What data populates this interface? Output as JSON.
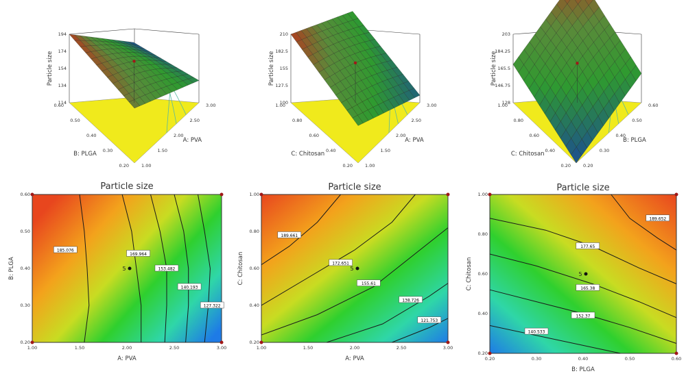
{
  "chart_data": [
    {
      "type": "surface",
      "z_label": "Particle size",
      "x_label": "A: PVA",
      "y_label": "B: PLGA",
      "z_ticks": [
        "194",
        "174",
        "154",
        "134",
        "114"
      ],
      "x_ticks": [
        "1.00",
        "1.50",
        "2.00",
        "2.50",
        "3.00"
      ],
      "y_ticks": [
        "0.20",
        "0.30",
        "0.40",
        "0.50",
        "0.60"
      ],
      "x_range": [
        1.0,
        3.0
      ],
      "y_range": [
        0.2,
        0.6
      ],
      "z_range": [
        114,
        194
      ],
      "corner_values": {
        "x0y0": 178,
        "x1y0": 140,
        "x0y1": 194,
        "x1y1": 114
      },
      "colors": {
        "high": "#b23b1e",
        "mid": "#2f9a30",
        "low": "#1c4f8f",
        "floor": "#f0ea1c"
      }
    },
    {
      "type": "surface",
      "z_label": "Particle size",
      "x_label": "A: PVA",
      "y_label": "C: Chitosan",
      "z_ticks": [
        "210",
        "182.5",
        "155",
        "127.5",
        "100"
      ],
      "x_ticks": [
        "1.00",
        "1.50",
        "2.00",
        "2.50",
        "3.00"
      ],
      "y_ticks": [
        "0.20",
        "0.40",
        "0.60",
        "0.80",
        "1.00"
      ],
      "x_range": [
        1.0,
        3.0
      ],
      "y_range": [
        0.2,
        1.0
      ],
      "z_range": [
        100,
        210
      ],
      "corner_values": {
        "x0y0": 160,
        "x1y0": 112,
        "x0y1": 210,
        "x1y1": 150
      },
      "colors": {
        "high": "#b23b1e",
        "mid": "#2f9a30",
        "low": "#1c4f8f",
        "floor": "#f0ea1c"
      }
    },
    {
      "type": "surface",
      "z_label": "Particle size",
      "x_label": "B: PLGA",
      "y_label": "C: Chitosan",
      "z_ticks": [
        "203",
        "184.25",
        "165.5",
        "146.75",
        "128"
      ],
      "x_ticks": [
        "0.20",
        "0.30",
        "0.40",
        "0.50",
        "0.60"
      ],
      "y_ticks": [
        "0.20",
        "0.40",
        "0.60",
        "0.80",
        "1.00"
      ],
      "x_range": [
        0.2,
        0.6
      ],
      "y_range": [
        0.2,
        1.0
      ],
      "z_range": [
        128,
        203
      ],
      "corner_values": {
        "x0y0": 128,
        "x1y0": 160,
        "x0y1": 170,
        "x1y1": 203
      },
      "colors": {
        "high": "#b23b1e",
        "mid": "#2f9a30",
        "low": "#1c4f8f",
        "floor": "#f0ea1c"
      }
    },
    {
      "type": "contour",
      "title": "Particle size",
      "x_label": "A: PVA",
      "y_label": "B: PLGA",
      "x_ticks": [
        "1.00",
        "1.50",
        "2.00",
        "2.50",
        "3.00"
      ],
      "y_ticks": [
        "0.20",
        "0.30",
        "0.40",
        "0.50",
        "0.60"
      ],
      "x_range": [
        1.0,
        3.0
      ],
      "y_range": [
        0.2,
        0.6
      ],
      "design_point_label": "5",
      "design_point": [
        2.0,
        0.4
      ],
      "contours": [
        {
          "label": "185.076",
          "points": [
            [
              1.55,
              0.2
            ],
            [
              1.6,
              0.3
            ],
            [
              1.58,
              0.4
            ],
            [
              1.55,
              0.5
            ],
            [
              1.5,
              0.6
            ]
          ],
          "label_at": [
            1.35,
            0.45
          ]
        },
        {
          "label": "169.964",
          "points": [
            [
              2.15,
              0.2
            ],
            [
              2.15,
              0.3
            ],
            [
              2.1,
              0.4
            ],
            [
              2.05,
              0.5
            ],
            [
              1.95,
              0.6
            ]
          ],
          "label_at": [
            2.12,
            0.44
          ]
        },
        {
          "label": "153.482",
          "points": [
            [
              2.4,
              0.2
            ],
            [
              2.42,
              0.3
            ],
            [
              2.42,
              0.4
            ],
            [
              2.35,
              0.5
            ],
            [
              2.25,
              0.6
            ]
          ],
          "label_at": [
            2.42,
            0.4
          ]
        },
        {
          "label": "140.193",
          "points": [
            [
              2.62,
              0.2
            ],
            [
              2.65,
              0.3
            ],
            [
              2.65,
              0.4
            ],
            [
              2.6,
              0.5
            ],
            [
              2.5,
              0.6
            ]
          ],
          "label_at": [
            2.66,
            0.35
          ]
        },
        {
          "label": "127.322",
          "points": [
            [
              2.82,
              0.2
            ],
            [
              2.86,
              0.3
            ],
            [
              2.88,
              0.4
            ],
            [
              2.82,
              0.5
            ],
            [
              2.75,
              0.6
            ]
          ],
          "label_at": [
            2.9,
            0.3
          ]
        }
      ],
      "colors": {
        "high": "#e8461e",
        "mid": "#2fd02e",
        "low": "#1e7be6"
      }
    },
    {
      "type": "contour",
      "title": "Particle size",
      "x_label": "A: PVA",
      "y_label": "C: Chitosan",
      "x_ticks": [
        "1.00",
        "1.50",
        "2.00",
        "2.50",
        "3.00"
      ],
      "y_ticks": [
        "0.20",
        "0.40",
        "0.60",
        "0.80",
        "1.00"
      ],
      "x_range": [
        1.0,
        3.0
      ],
      "y_range": [
        0.2,
        1.0
      ],
      "design_point_label": "5",
      "design_point": [
        2.0,
        0.6
      ],
      "contours": [
        {
          "label": "189.661",
          "points": [
            [
              1.0,
              0.62
            ],
            [
              1.3,
              0.72
            ],
            [
              1.6,
              0.85
            ],
            [
              1.85,
              1.0
            ]
          ],
          "label_at": [
            1.3,
            0.78
          ]
        },
        {
          "label": "172.651",
          "points": [
            [
              1.0,
              0.4
            ],
            [
              1.5,
              0.55
            ],
            [
              2.0,
              0.7
            ],
            [
              2.4,
              0.85
            ],
            [
              2.65,
              1.0
            ]
          ],
          "label_at": [
            1.85,
            0.63
          ]
        },
        {
          "label": "155.61",
          "points": [
            [
              1.0,
              0.24
            ],
            [
              1.6,
              0.35
            ],
            [
              2.2,
              0.5
            ],
            [
              2.7,
              0.7
            ],
            [
              3.0,
              0.82
            ]
          ],
          "label_at": [
            2.15,
            0.52
          ]
        },
        {
          "label": "138.726",
          "points": [
            [
              1.7,
              0.2
            ],
            [
              2.3,
              0.3
            ],
            [
              2.8,
              0.45
            ],
            [
              3.0,
              0.52
            ]
          ],
          "label_at": [
            2.6,
            0.43
          ]
        },
        {
          "label": "121.753",
          "points": [
            [
              2.4,
              0.2
            ],
            [
              2.8,
              0.28
            ],
            [
              3.0,
              0.33
            ]
          ],
          "label_at": [
            2.8,
            0.32
          ]
        }
      ],
      "colors": {
        "high": "#e8461e",
        "mid": "#2fd02e",
        "low": "#1e7be6"
      }
    },
    {
      "type": "contour",
      "title": "Particle size",
      "x_label": "B: PLGA",
      "y_label": "C: Chitosan",
      "x_ticks": [
        "0.20",
        "0.30",
        "0.40",
        "0.50",
        "0.60"
      ],
      "y_ticks": [
        "0.20",
        "0.40",
        "0.60",
        "0.80",
        "1.00"
      ],
      "x_range": [
        0.2,
        0.6
      ],
      "y_range": [
        0.2,
        1.0
      ],
      "design_point_label": "5",
      "design_point": [
        0.4,
        0.6
      ],
      "contours": [
        {
          "label": "189.652",
          "points": [
            [
              0.46,
              1.0
            ],
            [
              0.5,
              0.88
            ],
            [
              0.56,
              0.78
            ],
            [
              0.6,
              0.72
            ]
          ],
          "label_at": [
            0.56,
            0.88
          ]
        },
        {
          "label": "177.65",
          "points": [
            [
              0.2,
              0.88
            ],
            [
              0.32,
              0.82
            ],
            [
              0.42,
              0.74
            ],
            [
              0.52,
              0.63
            ],
            [
              0.6,
              0.55
            ]
          ],
          "label_at": [
            0.41,
            0.74
          ]
        },
        {
          "label": "165.38",
          "points": [
            [
              0.2,
              0.7
            ],
            [
              0.3,
              0.64
            ],
            [
              0.42,
              0.55
            ],
            [
              0.52,
              0.46
            ],
            [
              0.6,
              0.38
            ]
          ],
          "label_at": [
            0.41,
            0.53
          ]
        },
        {
          "label": "152.37",
          "points": [
            [
              0.2,
              0.52
            ],
            [
              0.3,
              0.46
            ],
            [
              0.4,
              0.4
            ],
            [
              0.5,
              0.33
            ],
            [
              0.6,
              0.25
            ]
          ],
          "label_at": [
            0.4,
            0.39
          ]
        },
        {
          "label": "140.533",
          "points": [
            [
              0.2,
              0.34
            ],
            [
              0.3,
              0.29
            ],
            [
              0.4,
              0.24
            ],
            [
              0.48,
              0.2
            ]
          ],
          "label_at": [
            0.3,
            0.31
          ]
        }
      ],
      "colors": {
        "high": "#e8461e",
        "mid": "#2fd02e",
        "low": "#1e7be6"
      }
    }
  ]
}
